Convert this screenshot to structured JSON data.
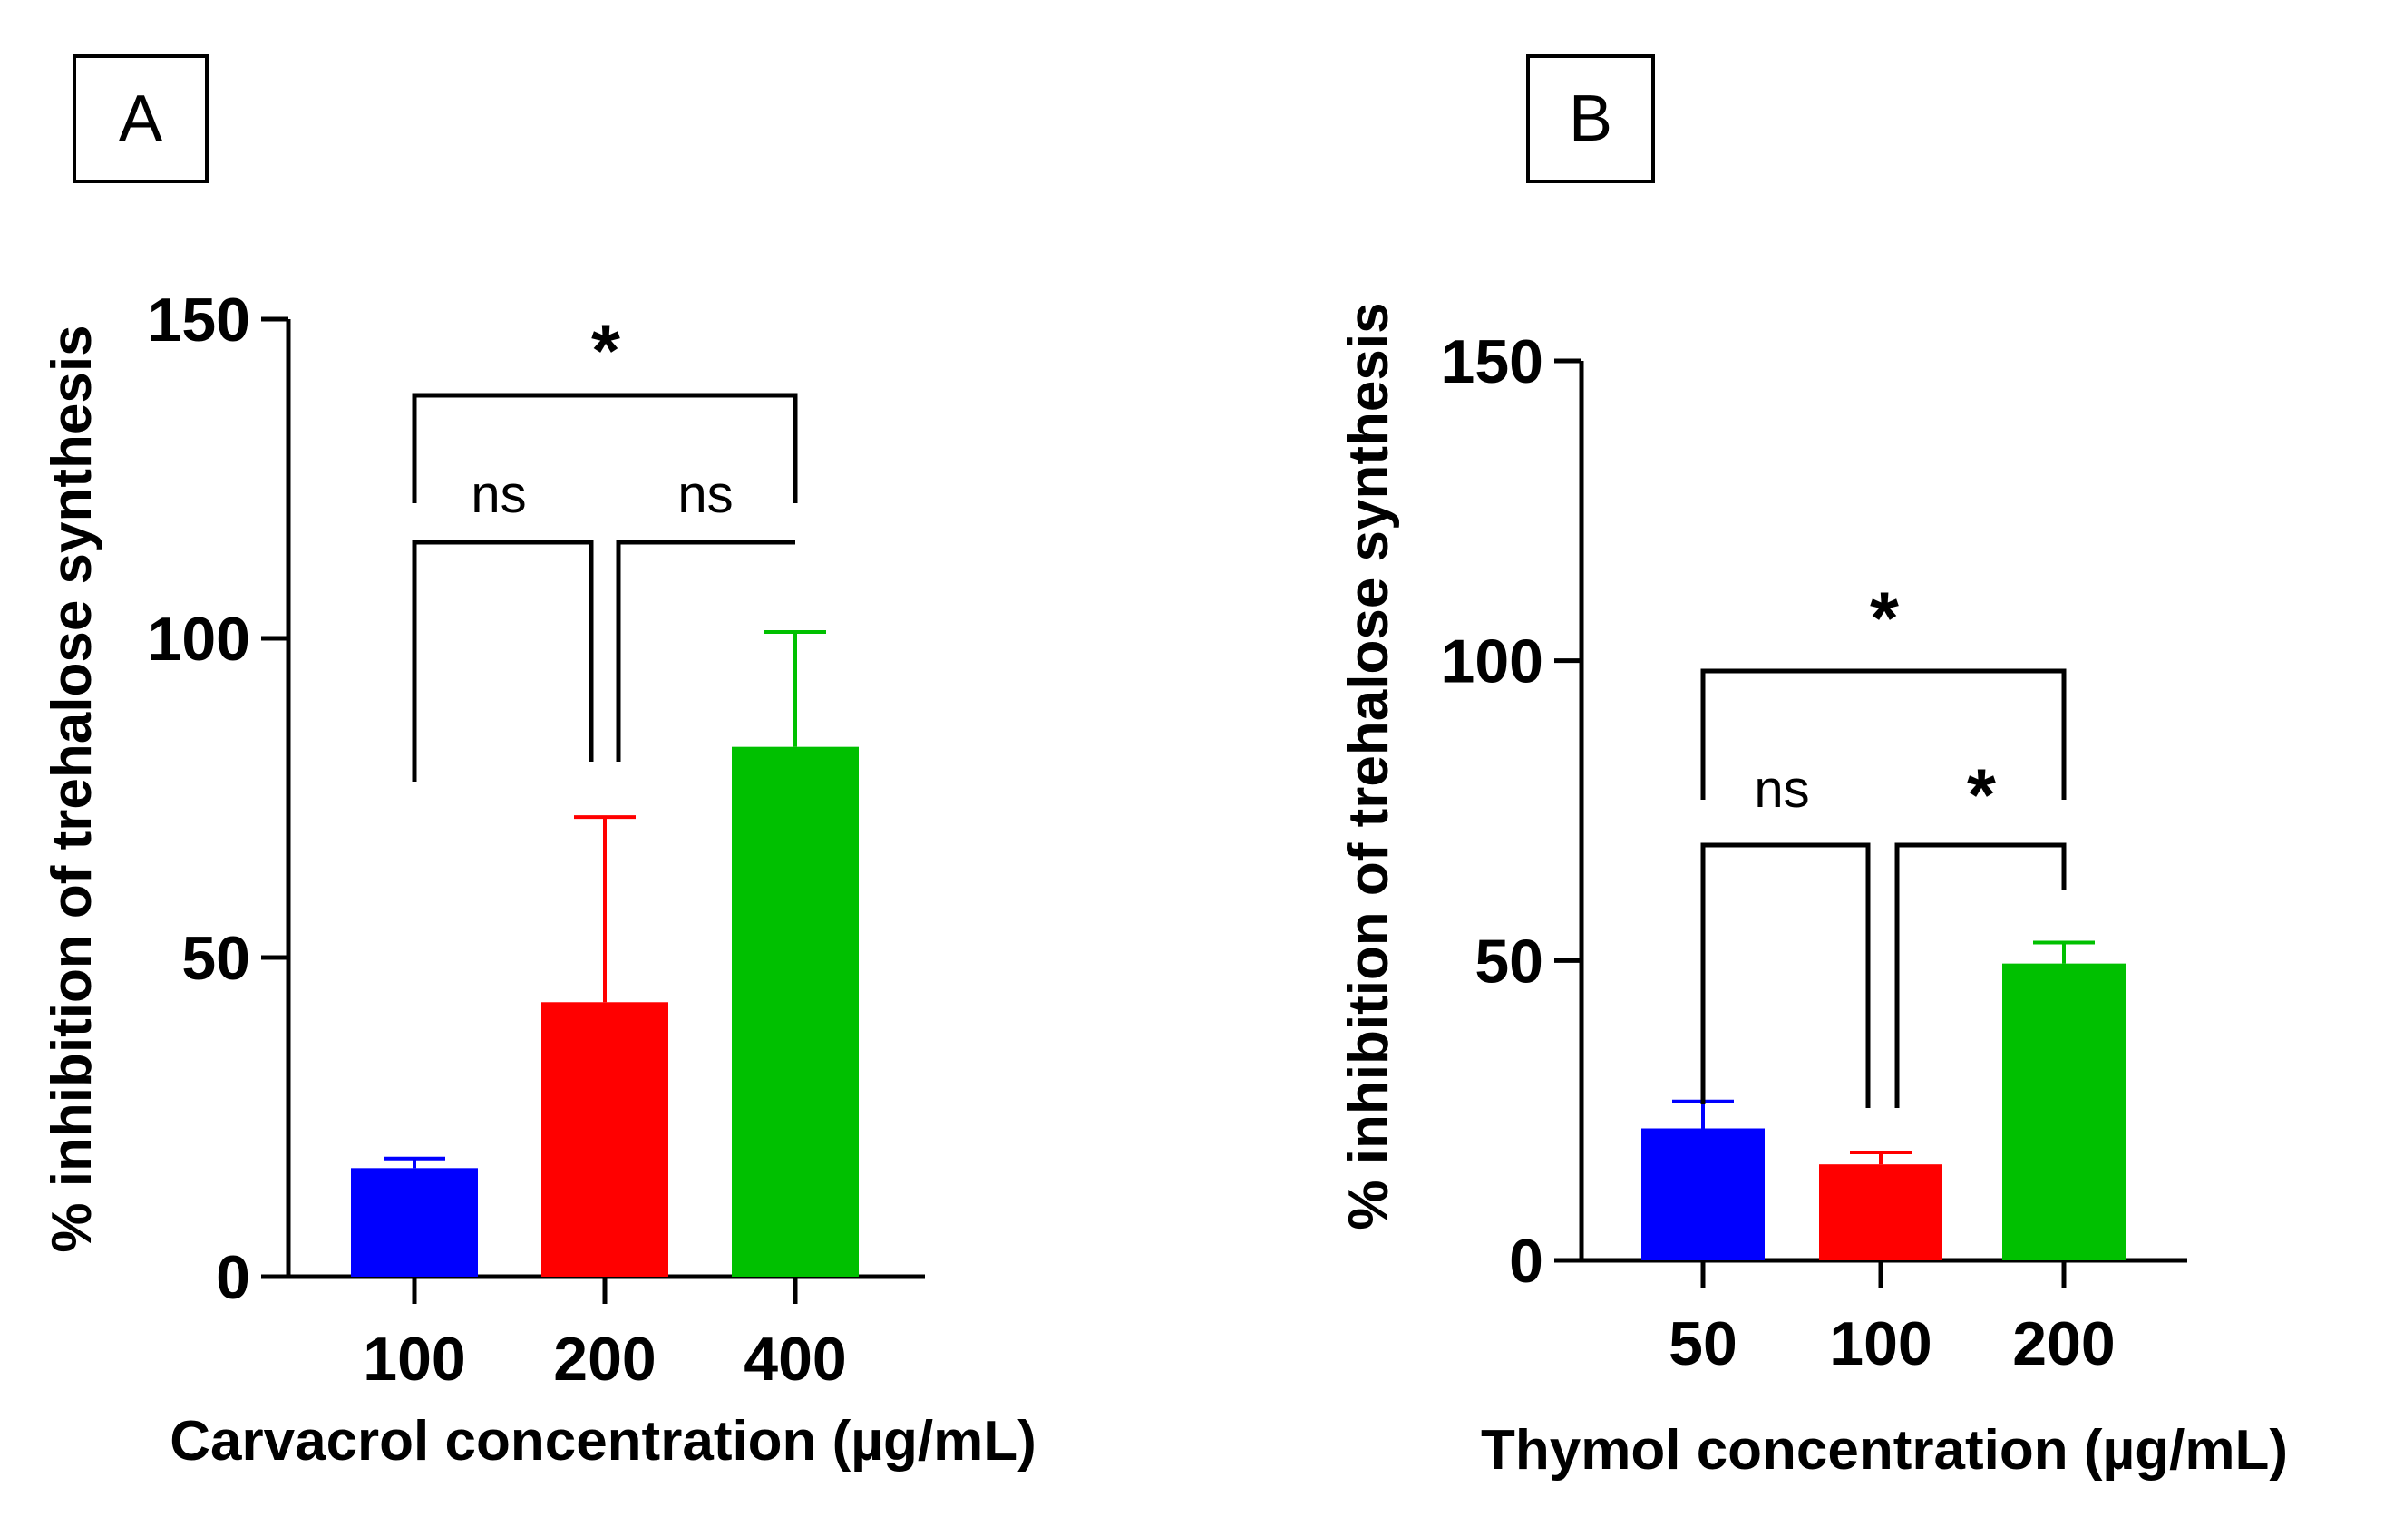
{
  "chart_data": [
    {
      "type": "bar",
      "panel_label": "A",
      "xlabel": "Carvacrol concentration (µg/mL)",
      "ylabel": "% inhibition of trehalose synthesis",
      "categories": [
        "100",
        "200",
        "400"
      ],
      "values": [
        17,
        43,
        83
      ],
      "errors": [
        1.5,
        29,
        18
      ],
      "colors": [
        "#0000ff",
        "#ff0000",
        "#00c000"
      ],
      "ylim": [
        0,
        150
      ],
      "yticks": [
        "0",
        "50",
        "100",
        "150"
      ],
      "comparisons": [
        {
          "from": 0,
          "to": 1,
          "label": "ns"
        },
        {
          "from": 1,
          "to": 2,
          "label": "ns"
        },
        {
          "from": 0,
          "to": 2,
          "label": "*"
        }
      ]
    },
    {
      "type": "bar",
      "panel_label": "B",
      "xlabel": "Thymol concentration (µg/mL)",
      "ylabel": "% inhibition of trehalose synthesis",
      "categories": [
        "50",
        "100",
        "200"
      ],
      "values": [
        22,
        16,
        49.5
      ],
      "errors": [
        4.5,
        2,
        3.5
      ],
      "colors": [
        "#0000ff",
        "#ff0000",
        "#00c000"
      ],
      "ylim": [
        0,
        150
      ],
      "yticks": [
        "0",
        "50",
        "100",
        "150"
      ],
      "comparisons": [
        {
          "from": 0,
          "to": 1,
          "label": "ns"
        },
        {
          "from": 1,
          "to": 2,
          "label": "*"
        },
        {
          "from": 0,
          "to": 2,
          "label": "*"
        }
      ]
    }
  ]
}
